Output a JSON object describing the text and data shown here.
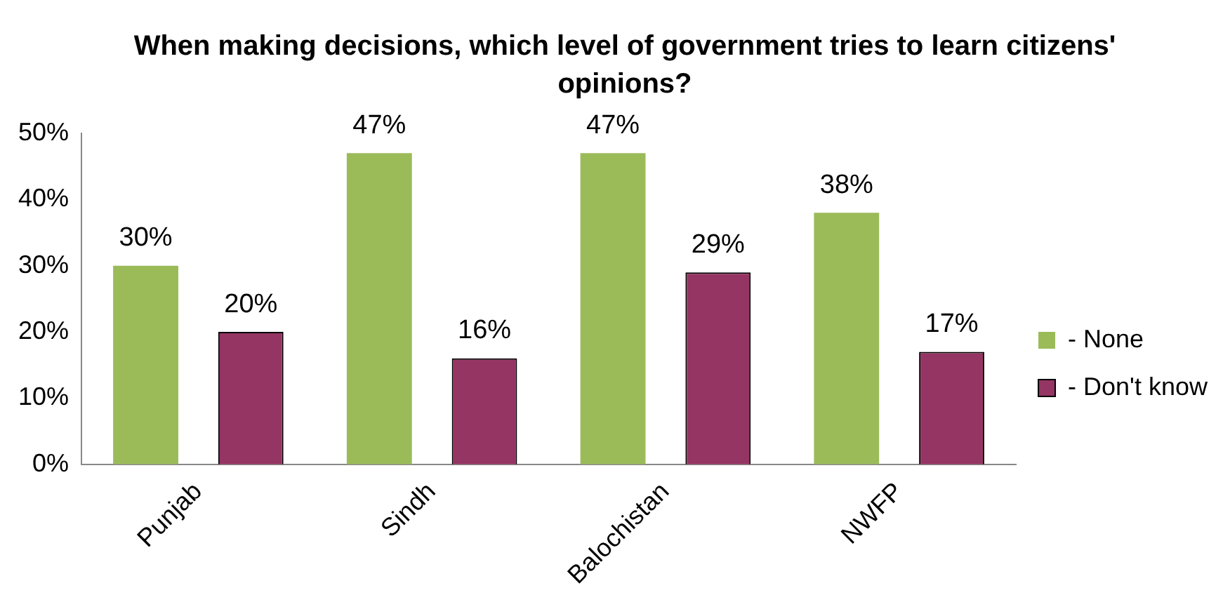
{
  "chart_data": {
    "type": "bar",
    "title": "When making decisions, which level of government tries to learn citizens' opinions?",
    "categories": [
      "Punjab",
      "Sindh",
      "Balochistan",
      "NWFP"
    ],
    "series": [
      {
        "name": "- None",
        "color": "#9bbb59",
        "values": [
          30,
          47,
          47,
          38
        ]
      },
      {
        "name": "- Don't know",
        "color": "#953563",
        "values": [
          20,
          16,
          29,
          17
        ]
      }
    ],
    "ylim": [
      0,
      50
    ],
    "yticks": [
      {
        "value": 0,
        "label": "0%"
      },
      {
        "value": 10,
        "label": "10%"
      },
      {
        "value": 20,
        "label": "20%"
      },
      {
        "value": 30,
        "label": "30%"
      },
      {
        "value": 40,
        "label": "40%"
      },
      {
        "value": 50,
        "label": "50%"
      }
    ],
    "value_labels": [
      [
        "30%",
        "47%",
        "47%",
        "38%"
      ],
      [
        "20%",
        "16%",
        "29%",
        "17%"
      ]
    ],
    "grid": false,
    "legend": "right"
  }
}
